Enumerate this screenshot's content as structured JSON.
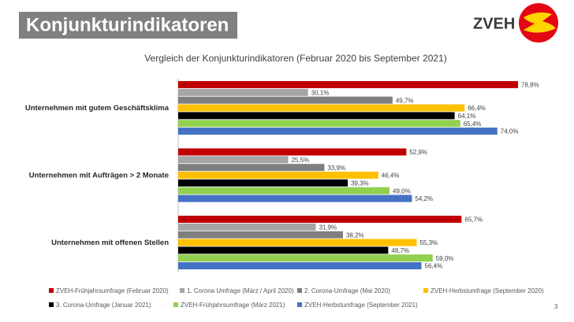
{
  "header": {
    "title": "Konjunkturindikatoren",
    "logo_text": "ZVEH"
  },
  "page_number": "3",
  "chart_data": {
    "type": "hbar",
    "title": "Vergleich der Konjunkturindikatoren (Februar 2020 bis September 2021)",
    "categories": [
      "Unternehmen mit gutem Geschäftsklima",
      "Unternehmen mit Aufträgen > 2 Monate",
      "Unternehmen mit offenen Stellen"
    ],
    "legend": "bottom",
    "series": [
      {
        "name": "ZVEH-Frühjahrsumfrage (Februar 2020)",
        "color": "#c00000",
        "values": [
          78.8,
          52.9,
          65.7
        ],
        "value_labels": [
          "78,8%",
          "52,9%",
          "65,7%"
        ]
      },
      {
        "name": "1. Corona Umfrage (März / April 2020)",
        "color": "#a5a5a5",
        "values": [
          30.1,
          25.5,
          31.9
        ],
        "value_labels": [
          "30,1%",
          "25,5%",
          "31,9%"
        ]
      },
      {
        "name": "2. Corona-Umfrage (Mai 2020)",
        "color": "#7f7f7f",
        "values": [
          49.7,
          33.9,
          38.2
        ],
        "value_labels": [
          "49,7%",
          "33,9%",
          "38,2%"
        ]
      },
      {
        "name": "ZVEH-Herbstumfrage (September 2020)",
        "color": "#ffc000",
        "values": [
          66.4,
          46.4,
          55.3
        ],
        "value_labels": [
          "66,4%",
          "46,4%",
          "55,3%"
        ]
      },
      {
        "name": "3. Corona-Umfrage (Januar 2021)",
        "color": "#000000",
        "values": [
          64.1,
          39.3,
          48.7
        ],
        "value_labels": [
          "64,1%",
          "39,3%",
          "48,7%"
        ]
      },
      {
        "name": "ZVEH-Frühjahrsumfrage (März 2021)",
        "color": "#92d050",
        "values": [
          65.4,
          49.0,
          59.0
        ],
        "value_labels": [
          "65,4%",
          "49,0%",
          "59,0%"
        ]
      },
      {
        "name": "ZVEH-Herbstumfrage (September 2021)",
        "color": "#4472c4",
        "values": [
          74.0,
          54.2,
          56.4
        ],
        "value_labels": [
          "74,0%",
          "54,2%",
          "56,4%"
        ]
      }
    ]
  }
}
